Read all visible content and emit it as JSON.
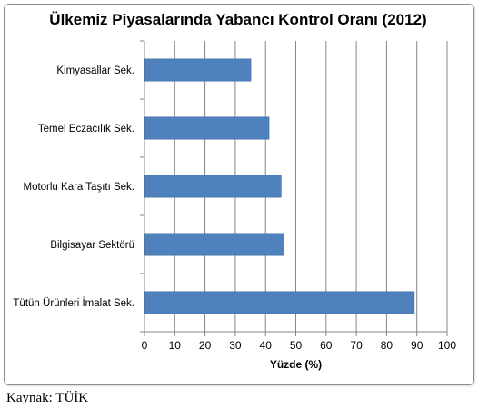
{
  "chart_data": {
    "type": "bar",
    "orientation": "horizontal",
    "title": "Ülkemiz Piyasalarında Yabancı Kontrol Oranı (2012)",
    "xlabel": "Yüzde (%)",
    "ylabel": "",
    "categories": [
      "Kimyasallar Sek.",
      "Temel Eczacılık Sek.",
      "Motorlu Kara Taşıtı Sek.",
      "Bilgisayar Sektörü",
      "Tütün Ürünleri İmalat Sek."
    ],
    "values": [
      35,
      41,
      45,
      46,
      89
    ],
    "xlim": [
      0,
      100
    ],
    "xticks": [
      0,
      10,
      20,
      30,
      40,
      50,
      60,
      70,
      80,
      90,
      100
    ],
    "grid": "vertical",
    "legend": "none",
    "bar_color": "#4f81bd"
  },
  "source_note": "Kaynak: TÜİK"
}
